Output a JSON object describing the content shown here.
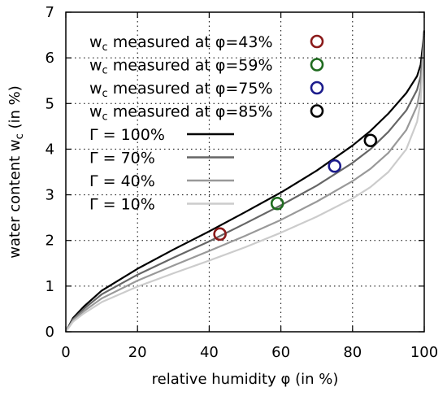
{
  "chart_data": {
    "type": "line",
    "xlabel": "relative humidity φ (in %)",
    "ylabel": "water content w",
    "ylabel_subscript": "c",
    "ylabel_suffix": " (in %)",
    "xlim": [
      0,
      100
    ],
    "ylim": [
      0,
      7
    ],
    "xticks": [
      0,
      20,
      40,
      60,
      80,
      100
    ],
    "yticks": [
      0,
      1,
      2,
      3,
      4,
      5,
      6,
      7
    ],
    "grid": true,
    "legend_position": "top-left",
    "series": [
      {
        "name": "Γ = 100%",
        "kind": "line",
        "color": "#000000",
        "points": [
          [
            0,
            0
          ],
          [
            2,
            0.3
          ],
          [
            5,
            0.55
          ],
          [
            10,
            0.9
          ],
          [
            20,
            1.38
          ],
          [
            30,
            1.8
          ],
          [
            40,
            2.2
          ],
          [
            50,
            2.62
          ],
          [
            60,
            3.05
          ],
          [
            70,
            3.53
          ],
          [
            80,
            4.08
          ],
          [
            85,
            4.4
          ],
          [
            90,
            4.78
          ],
          [
            95,
            5.23
          ],
          [
            98,
            5.6
          ],
          [
            99,
            5.85
          ],
          [
            99.7,
            6.35
          ],
          [
            100,
            6.6
          ]
        ]
      },
      {
        "name": "Γ = 70%",
        "kind": "line",
        "color": "#666666",
        "points": [
          [
            0,
            0
          ],
          [
            2,
            0.27
          ],
          [
            5,
            0.5
          ],
          [
            10,
            0.82
          ],
          [
            20,
            1.25
          ],
          [
            30,
            1.62
          ],
          [
            40,
            1.98
          ],
          [
            50,
            2.37
          ],
          [
            60,
            2.77
          ],
          [
            70,
            3.2
          ],
          [
            80,
            3.7
          ],
          [
            85,
            4.0
          ],
          [
            90,
            4.38
          ],
          [
            95,
            4.85
          ],
          [
            98,
            5.3
          ],
          [
            99,
            5.6
          ],
          [
            99.7,
            6.2
          ],
          [
            100,
            6.55
          ]
        ]
      },
      {
        "name": "Γ = 40%",
        "kind": "line",
        "color": "#999999",
        "points": [
          [
            0,
            0
          ],
          [
            2,
            0.25
          ],
          [
            5,
            0.45
          ],
          [
            10,
            0.73
          ],
          [
            20,
            1.12
          ],
          [
            30,
            1.45
          ],
          [
            40,
            1.77
          ],
          [
            50,
            2.1
          ],
          [
            60,
            2.45
          ],
          [
            70,
            2.85
          ],
          [
            80,
            3.3
          ],
          [
            85,
            3.57
          ],
          [
            90,
            3.92
          ],
          [
            95,
            4.42
          ],
          [
            98,
            4.95
          ],
          [
            99,
            5.35
          ],
          [
            99.7,
            6.05
          ],
          [
            100,
            6.5
          ]
        ]
      },
      {
        "name": "Γ = 10%",
        "kind": "line",
        "color": "#cccccc",
        "points": [
          [
            0,
            0
          ],
          [
            2,
            0.22
          ],
          [
            5,
            0.4
          ],
          [
            10,
            0.65
          ],
          [
            20,
            0.99
          ],
          [
            30,
            1.28
          ],
          [
            40,
            1.56
          ],
          [
            50,
            1.85
          ],
          [
            60,
            2.17
          ],
          [
            70,
            2.52
          ],
          [
            80,
            2.92
          ],
          [
            85,
            3.17
          ],
          [
            90,
            3.5
          ],
          [
            95,
            4.0
          ],
          [
            98,
            4.6
          ],
          [
            99,
            5.05
          ],
          [
            99.7,
            5.85
          ],
          [
            100,
            6.45
          ]
        ]
      },
      {
        "name": "measured at φ=43%",
        "kind": "marker",
        "color": "#8b1a1a",
        "points": [
          [
            43,
            2.14
          ]
        ]
      },
      {
        "name": "measured at φ=59%",
        "kind": "marker",
        "color": "#1f6b1f",
        "points": [
          [
            59,
            2.81
          ]
        ]
      },
      {
        "name": "measured at φ=75%",
        "kind": "marker",
        "color": "#1c1c8c",
        "points": [
          [
            75,
            3.63
          ]
        ]
      },
      {
        "name": "measured at φ=85%",
        "kind": "marker",
        "color": "#000000",
        "points": [
          [
            85,
            4.19
          ]
        ]
      }
    ],
    "legend": [
      {
        "prefix": "w",
        "subscript": "c",
        "text": " measured at φ=43%",
        "series": 4
      },
      {
        "prefix": "w",
        "subscript": "c",
        "text": " measured at φ=59%",
        "series": 5
      },
      {
        "prefix": "w",
        "subscript": "c",
        "text": " measured at φ=75%",
        "series": 6
      },
      {
        "prefix": "w",
        "subscript": "c",
        "text": " measured at φ=85%",
        "series": 7
      },
      {
        "prefix": "",
        "subscript": "",
        "text": "Γ = 100%",
        "series": 0
      },
      {
        "prefix": "",
        "subscript": "",
        "text": "Γ = 70%",
        "series": 1
      },
      {
        "prefix": "",
        "subscript": "",
        "text": "Γ = 40%",
        "series": 2
      },
      {
        "prefix": "",
        "subscript": "",
        "text": "Γ = 10%",
        "series": 3
      }
    ]
  }
}
